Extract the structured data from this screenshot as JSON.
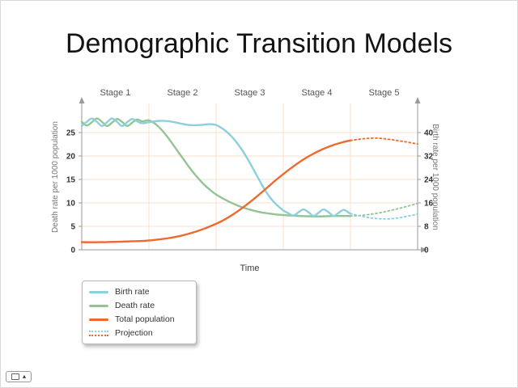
{
  "slide": {
    "title": "Demographic Transition Models"
  },
  "nav": {
    "arrow_icon": "▴"
  },
  "chart_data": {
    "type": "line",
    "title": "Demographic Transition Models",
    "xlabel": "Time",
    "ylabel_left": "Death rate per 1000 population",
    "ylabel_right": "Birth rate per 1000 population",
    "stages": [
      "Stage 1",
      "Stage 2",
      "Stage 3",
      "Stage 4",
      "Stage 5"
    ],
    "y_left": {
      "ticks": [
        0,
        5,
        10,
        15,
        20,
        25
      ],
      "max": 31
    },
    "y_right": {
      "ticks": [
        0,
        8,
        16,
        24,
        32,
        40
      ],
      "max": 50
    },
    "grid_color": "#f5e0cb",
    "axis_color": "#9a9a9a",
    "legend": [
      "Birth rate",
      "Death rate",
      "Total population",
      "Projection"
    ],
    "series": [
      {
        "name": "Birth rate",
        "color": "#8ccfdd",
        "axis": "left",
        "solid": [
          [
            0,
            26.4
          ],
          [
            1.5,
            27.3
          ],
          [
            3,
            28
          ],
          [
            4.5,
            27.3
          ],
          [
            6,
            26.4
          ],
          [
            7.5,
            27.2
          ],
          [
            9,
            28
          ],
          [
            10.5,
            27.3
          ],
          [
            12,
            26.4
          ],
          [
            13.5,
            27.2
          ],
          [
            15,
            27.9
          ],
          [
            16.5,
            27.4
          ],
          [
            18,
            27
          ],
          [
            20,
            27.2
          ],
          [
            23,
            27.5
          ],
          [
            26,
            27.4
          ],
          [
            29,
            27
          ],
          [
            32,
            26.6
          ],
          [
            35,
            26.6
          ],
          [
            38,
            26.8
          ],
          [
            40,
            26.6
          ],
          [
            42,
            25.8
          ],
          [
            44,
            24.6
          ],
          [
            46,
            23
          ],
          [
            48,
            21
          ],
          [
            50,
            18.6
          ],
          [
            52,
            16
          ],
          [
            54,
            13.4
          ],
          [
            56,
            11.2
          ],
          [
            58,
            9.6
          ],
          [
            60,
            8.4
          ],
          [
            61.5,
            7.8
          ],
          [
            63,
            7.3
          ],
          [
            64.5,
            8
          ],
          [
            66,
            8.6
          ],
          [
            67.5,
            8
          ],
          [
            69,
            7.2
          ],
          [
            70.5,
            7.9
          ],
          [
            72,
            8.6
          ],
          [
            73.5,
            8
          ],
          [
            75,
            7.2
          ],
          [
            76.5,
            7.9
          ],
          [
            78,
            8.5
          ],
          [
            79.5,
            7.9
          ],
          [
            80,
            7.7
          ]
        ],
        "dotted": [
          [
            80,
            7.7
          ],
          [
            83,
            7.2
          ],
          [
            86,
            6.8
          ],
          [
            89,
            6.6
          ],
          [
            92,
            6.6
          ],
          [
            95,
            6.9
          ],
          [
            98,
            7.3
          ],
          [
            100,
            7.6
          ]
        ]
      },
      {
        "name": "Death rate",
        "color": "#92c593",
        "axis": "left",
        "solid": [
          [
            0,
            27.3
          ],
          [
            1.5,
            26.5
          ],
          [
            3,
            27.2
          ],
          [
            4.5,
            28
          ],
          [
            6,
            27.3
          ],
          [
            7.5,
            26.4
          ],
          [
            9,
            27.1
          ],
          [
            10.5,
            27.9
          ],
          [
            12,
            27.3
          ],
          [
            13.5,
            26.4
          ],
          [
            15,
            27.1
          ],
          [
            16.5,
            27.8
          ],
          [
            18,
            27.4
          ],
          [
            20,
            27.6
          ],
          [
            22,
            26.8
          ],
          [
            24,
            25.4
          ],
          [
            26,
            23.6
          ],
          [
            28,
            21.6
          ],
          [
            30,
            19.6
          ],
          [
            32,
            17.6
          ],
          [
            34,
            15.8
          ],
          [
            36,
            14.2
          ],
          [
            38,
            12.9
          ],
          [
            40,
            11.8
          ],
          [
            44,
            10.2
          ],
          [
            48,
            9
          ],
          [
            52,
            8.2
          ],
          [
            56,
            7.7
          ],
          [
            60,
            7.4
          ],
          [
            65,
            7.2
          ],
          [
            70,
            7.1
          ],
          [
            75,
            7.2
          ],
          [
            80,
            7.2
          ]
        ],
        "dotted": [
          [
            80,
            7.2
          ],
          [
            84,
            7.4
          ],
          [
            88,
            7.8
          ],
          [
            92,
            8.4
          ],
          [
            96,
            9.1
          ],
          [
            100,
            9.9
          ]
        ]
      },
      {
        "name": "Total population",
        "color": "#ed6a2f",
        "axis": "right",
        "solid": [
          [
            0,
            2.6
          ],
          [
            6,
            2.6
          ],
          [
            12,
            2.8
          ],
          [
            18,
            3
          ],
          [
            22,
            3.4
          ],
          [
            26,
            4
          ],
          [
            30,
            4.9
          ],
          [
            34,
            6.2
          ],
          [
            38,
            7.9
          ],
          [
            42,
            10
          ],
          [
            46,
            12.8
          ],
          [
            50,
            16.2
          ],
          [
            54,
            20
          ],
          [
            58,
            24
          ],
          [
            62,
            27.6
          ],
          [
            66,
            30.8
          ],
          [
            70,
            33.4
          ],
          [
            74,
            35.4
          ],
          [
            78,
            36.8
          ],
          [
            80,
            37.3
          ]
        ],
        "dotted": [
          [
            80,
            37.3
          ],
          [
            84,
            37.9
          ],
          [
            88,
            38.1
          ],
          [
            92,
            37.6
          ],
          [
            96,
            36.9
          ],
          [
            100,
            36.1
          ]
        ]
      }
    ]
  }
}
